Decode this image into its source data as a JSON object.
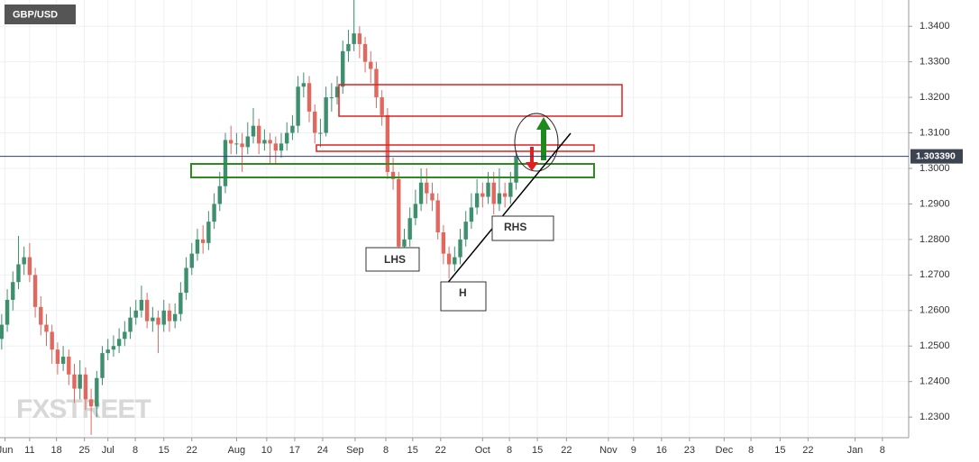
{
  "chart_data": {
    "type": "candlestick",
    "title": "GBP/USD",
    "open": [
      1.252,
      1.256,
      1.263,
      1.268,
      1.273,
      1.275,
      1.27,
      1.261,
      1.256,
      1.254,
      1.249,
      1.245,
      1.247,
      1.242,
      1.238,
      1.242,
      1.235,
      1.233,
      1.241,
      1.248,
      1.249,
      1.25,
      1.252,
      1.254,
      1.258,
      1.26,
      1.263,
      1.257,
      1.258,
      1.256,
      1.26,
      1.257,
      1.259,
      1.265,
      1.272,
      1.276,
      1.28,
      1.279,
      1.285,
      1.29,
      1.295,
      1.308,
      1.307,
      1.307,
      1.306,
      1.309,
      1.312,
      1.307,
      1.308,
      1.307,
      1.305,
      1.307,
      1.31,
      1.312,
      1.323,
      1.324,
      1.316,
      1.31,
      1.31,
      1.32,
      1.32,
      1.323,
      1.333,
      1.335,
      1.338,
      1.335,
      1.33,
      1.328,
      1.32,
      1.315,
      1.299,
      1.297,
      1.278,
      1.28,
      1.286,
      1.29,
      1.296,
      1.293,
      1.291,
      1.282,
      1.276,
      1.273,
      1.275,
      1.28,
      1.285,
      1.289,
      1.293,
      1.292,
      1.296,
      1.29,
      1.293,
      1.292,
      1.296
    ],
    "high": [
      1.259,
      1.266,
      1.271,
      1.281,
      1.278,
      1.279,
      1.272,
      1.264,
      1.259,
      1.256,
      1.251,
      1.25,
      1.249,
      1.245,
      1.246,
      1.244,
      1.238,
      1.243,
      1.25,
      1.252,
      1.253,
      1.255,
      1.257,
      1.261,
      1.263,
      1.267,
      1.265,
      1.261,
      1.26,
      1.263,
      1.262,
      1.262,
      1.268,
      1.275,
      1.279,
      1.283,
      1.284,
      1.288,
      1.293,
      1.299,
      1.31,
      1.312,
      1.31,
      1.31,
      1.313,
      1.317,
      1.314,
      1.311,
      1.31,
      1.309,
      1.31,
      1.313,
      1.315,
      1.326,
      1.327,
      1.326,
      1.318,
      1.314,
      1.323,
      1.324,
      1.326,
      1.336,
      1.339,
      1.348,
      1.34,
      1.337,
      1.333,
      1.33,
      1.322,
      1.317,
      1.303,
      1.299,
      1.283,
      1.289,
      1.294,
      1.3,
      1.3,
      1.296,
      1.293,
      1.284,
      1.278,
      1.278,
      1.283,
      1.288,
      1.293,
      1.297,
      1.296,
      1.299,
      1.299,
      1.3,
      1.296,
      1.299,
      1.305
    ],
    "low": [
      1.249,
      1.254,
      1.26,
      1.266,
      1.27,
      1.268,
      1.258,
      1.253,
      1.25,
      1.245,
      1.242,
      1.243,
      1.239,
      1.234,
      1.235,
      1.232,
      1.225,
      1.23,
      1.239,
      1.246,
      1.247,
      1.248,
      1.25,
      1.252,
      1.256,
      1.258,
      1.255,
      1.254,
      1.248,
      1.254,
      1.254,
      1.255,
      1.257,
      1.263,
      1.27,
      1.274,
      1.276,
      1.277,
      1.283,
      1.288,
      1.293,
      1.304,
      1.304,
      1.299,
      1.304,
      1.307,
      1.304,
      1.305,
      1.301,
      1.301,
      1.303,
      1.305,
      1.308,
      1.31,
      1.32,
      1.313,
      1.307,
      1.306,
      1.309,
      1.316,
      1.318,
      1.321,
      1.33,
      1.333,
      1.331,
      1.327,
      1.324,
      1.317,
      1.312,
      1.297,
      1.294,
      1.276,
      1.276,
      1.278,
      1.284,
      1.288,
      1.29,
      1.288,
      1.28,
      1.273,
      1.269,
      1.271,
      1.273,
      1.278,
      1.283,
      1.287,
      1.289,
      1.29,
      1.287,
      1.288,
      1.289,
      1.29,
      1.294
    ],
    "close": [
      1.256,
      1.263,
      1.268,
      1.273,
      1.275,
      1.27,
      1.261,
      1.256,
      1.254,
      1.249,
      1.245,
      1.247,
      1.242,
      1.238,
      1.242,
      1.235,
      1.233,
      1.241,
      1.248,
      1.249,
      1.25,
      1.252,
      1.254,
      1.258,
      1.26,
      1.263,
      1.257,
      1.258,
      1.256,
      1.26,
      1.257,
      1.259,
      1.265,
      1.272,
      1.276,
      1.28,
      1.279,
      1.285,
      1.29,
      1.295,
      1.308,
      1.307,
      1.307,
      1.306,
      1.309,
      1.312,
      1.307,
      1.308,
      1.307,
      1.305,
      1.307,
      1.31,
      1.312,
      1.323,
      1.324,
      1.316,
      1.31,
      1.31,
      1.32,
      1.32,
      1.323,
      1.333,
      1.335,
      1.338,
      1.335,
      1.33,
      1.328,
      1.32,
      1.315,
      1.299,
      1.297,
      1.278,
      1.28,
      1.286,
      1.29,
      1.296,
      1.293,
      1.291,
      1.282,
      1.276,
      1.273,
      1.275,
      1.28,
      1.285,
      1.289,
      1.293,
      1.292,
      1.296,
      1.29,
      1.293,
      1.292,
      1.296,
      1.3034
    ],
    "up_color": "#3d8f6d",
    "down_color": "#e0685f",
    "xlim": [
      -0.3,
      162.2
    ],
    "ylim": [
      1.2242,
      1.3474
    ],
    "xticks": [
      {
        "value": 0.6,
        "label": "Jun"
      },
      {
        "value": 5,
        "label": "11"
      },
      {
        "value": 9.8,
        "label": "18"
      },
      {
        "value": 14.8,
        "label": "25"
      },
      {
        "value": 19,
        "label": "Jul"
      },
      {
        "value": 23.9,
        "label": "8"
      },
      {
        "value": 29,
        "label": "15"
      },
      {
        "value": 34,
        "label": "22"
      },
      {
        "value": 42,
        "label": "Aug"
      },
      {
        "value": 47.4,
        "label": "10"
      },
      {
        "value": 52.4,
        "label": "17"
      },
      {
        "value": 57.4,
        "label": "24"
      },
      {
        "value": 63.2,
        "label": "Sep"
      },
      {
        "value": 68.7,
        "label": "8"
      },
      {
        "value": 73.5,
        "label": "15"
      },
      {
        "value": 78.5,
        "label": "22"
      },
      {
        "value": 86,
        "label": "Oct"
      },
      {
        "value": 90.8,
        "label": "8"
      },
      {
        "value": 95.8,
        "label": "15"
      },
      {
        "value": 101,
        "label": "22"
      },
      {
        "value": 108.5,
        "label": "Nov"
      },
      {
        "value": 113,
        "label": "9"
      },
      {
        "value": 118,
        "label": "16"
      },
      {
        "value": 123,
        "label": "23"
      },
      {
        "value": 129.2,
        "label": "Dec"
      },
      {
        "value": 134,
        "label": "8"
      },
      {
        "value": 139.2,
        "label": "15"
      },
      {
        "value": 144.2,
        "label": "22"
      },
      {
        "value": 152.6,
        "label": "Jan"
      },
      {
        "value": 157.5,
        "label": "8"
      }
    ],
    "yticks": [
      {
        "value": 1.23,
        "label": "1.2300"
      },
      {
        "value": 1.24,
        "label": "1.2400"
      },
      {
        "value": 1.25,
        "label": "1.2500"
      },
      {
        "value": 1.26,
        "label": "1.2600"
      },
      {
        "value": 1.27,
        "label": "1.2700"
      },
      {
        "value": 1.28,
        "label": "1.2800"
      },
      {
        "value": 1.29,
        "label": "1.2900"
      },
      {
        "value": 1.3,
        "label": "1.3000"
      },
      {
        "value": 1.31,
        "label": "1.3100"
      },
      {
        "value": 1.32,
        "label": "1.3200"
      },
      {
        "value": 1.33,
        "label": "1.3300"
      },
      {
        "value": 1.34,
        "label": "1.3400"
      }
    ],
    "grid": true,
    "last_price": {
      "value": 1.30339,
      "label": "1.303390"
    },
    "last_price_color": "#2b3a8c",
    "annotations": [
      "LHS",
      "H",
      "RHS"
    ],
    "watermark": "FXSTREET"
  }
}
